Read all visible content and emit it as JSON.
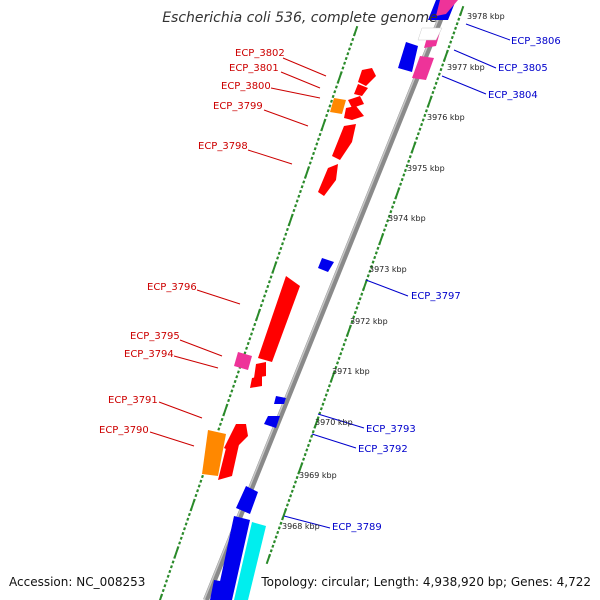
{
  "title": "Escherichia coli 536, complete genome",
  "footer": {
    "accession": "Accession: NC_008253",
    "topology": "Topology: circular; Length: 4,938,920 bp; Genes: 4,722"
  },
  "colors": {
    "backbone": "#8a8a8a",
    "ticks": "#2a8a2a",
    "forward_label": "#cc0000",
    "reverse_label": "#0000cc",
    "red": "#ff0000",
    "orange": "#ff8800",
    "pink": "#ee3399",
    "blue": "#0000ee",
    "cyan": "#00eeee"
  },
  "kbp_labels": [
    "3978 kbp",
    "3977 kbp",
    "3976 kbp",
    "3975 kbp",
    "3974 kbp",
    "3973 kbp",
    "3972 kbp",
    "3971 kbp",
    "3970 kbp",
    "3969 kbp",
    "3968 kbp"
  ],
  "left_labels": [
    "ECP_3802",
    "ECP_3801",
    "ECP_3800",
    "ECP_3799",
    "ECP_3798",
    "ECP_3796",
    "ECP_3795",
    "ECP_3794",
    "ECP_3791",
    "ECP_3790"
  ],
  "right_labels": [
    "ECP_3806",
    "ECP_3805",
    "ECP_3804",
    "ECP_3797",
    "ECP_3793",
    "ECP_3792",
    "ECP_3789"
  ]
}
